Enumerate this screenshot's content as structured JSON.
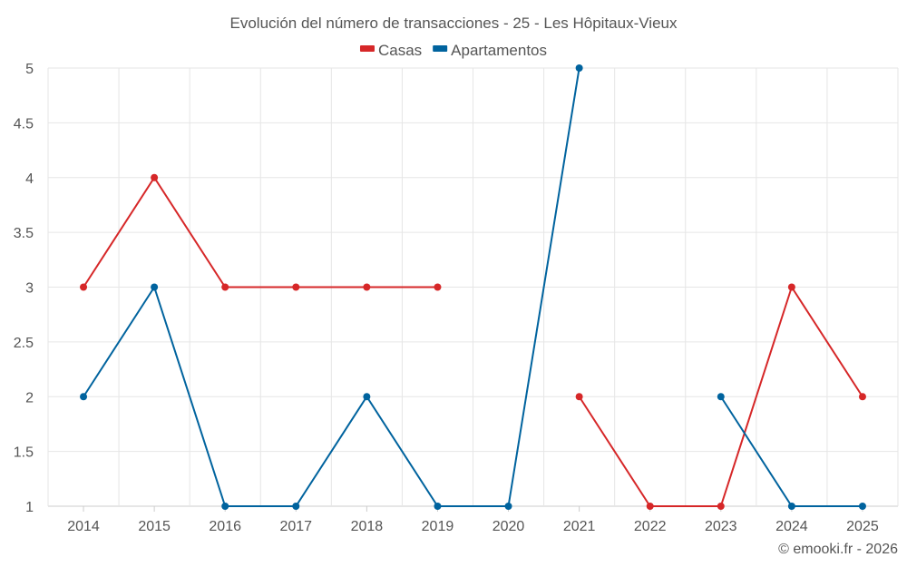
{
  "chart_data": {
    "type": "line",
    "title": "Evolución del número de transacciones - 25 - Les Hôpitaux-Vieux",
    "xlabel": "",
    "ylabel": "",
    "categories": [
      "2014",
      "2015",
      "2016",
      "2017",
      "2018",
      "2019",
      "2020",
      "2021",
      "2022",
      "2023",
      "2024",
      "2025"
    ],
    "ylim": [
      1,
      5
    ],
    "yticks": [
      "1",
      "1.5",
      "2",
      "2.5",
      "3",
      "3.5",
      "4",
      "4.5",
      "5"
    ],
    "grid": true,
    "legend_position": "top-center",
    "series": [
      {
        "name": "Casas",
        "color": "#d62728",
        "values": [
          3,
          4,
          3,
          3,
          3,
          3,
          null,
          2,
          1,
          1,
          3,
          2
        ]
      },
      {
        "name": "Apartamentos",
        "color": "#00639e",
        "values": [
          2,
          3,
          1,
          1,
          2,
          1,
          1,
          5,
          null,
          2,
          1,
          1
        ]
      }
    ]
  },
  "credit": "© emooki.fr - 2026"
}
